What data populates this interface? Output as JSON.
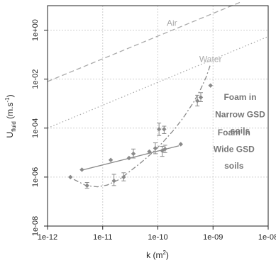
{
  "chart_data": {
    "type": "scatter",
    "x_scale": "log",
    "y_scale": "log",
    "xlim": [
      1e-12,
      1e-08
    ],
    "ylim": [
      1e-08,
      10.0
    ],
    "x_ticks": [
      1e-12,
      1e-11,
      1e-10,
      1e-09,
      1e-08
    ],
    "x_tick_labels": [
      "1e-12",
      "1e-11",
      "1e-10",
      "1e-09",
      "1e-08"
    ],
    "y_ticks": [
      1e-08,
      1e-06,
      0.0001,
      0.01,
      1.0
    ],
    "y_tick_labels": [
      "1e-08",
      "1e-06",
      "1e-04",
      "1e-02",
      "1e+00"
    ],
    "xlabel_main": "k (m",
    "xlabel_sup": "2",
    "xlabel_end": ")",
    "ylabel_main": "U",
    "ylabel_sub": "fluid",
    "ylabel_end": " (m.s",
    "ylabel_sup": "-1",
    "ylabel_close": ")",
    "grid": true,
    "colors": {
      "points": "#8a8a8a",
      "lines": "#8a8a8a",
      "reference": "#aaaaaa",
      "frame": "#222222",
      "grid": "#d0d0d0"
    },
    "annotations": [
      {
        "text": "Air",
        "x": 1.8e-10,
        "y": 1.5,
        "bold": false
      },
      {
        "text": "Water",
        "x": 9e-10,
        "y": 0.05,
        "bold": false
      },
      {
        "text": "Foam in",
        "x": 3.1e-09,
        "y": 0.0014,
        "bold": true
      },
      {
        "text": "Narrow GSD",
        "x": 3.1e-09,
        "y": 0.00028,
        "bold": true
      },
      {
        "text": "soils",
        "x": 3.1e-09,
        "y": 6e-05,
        "bold": true
      },
      {
        "text": "Foam in",
        "x": 2.4e-09,
        "y": 5e-05,
        "bold": true
      },
      {
        "text": "Wide GSD",
        "x": 2.4e-09,
        "y": 1.05e-05,
        "bold": true
      },
      {
        "text": "soils",
        "x": 2.4e-09,
        "y": 2.2e-06,
        "bold": true
      }
    ],
    "reference_lines": [
      {
        "name": "Air",
        "style": "dashed",
        "x": [
          1e-12,
          3.4e-09
        ],
        "y": [
          0.008,
          15
        ]
      },
      {
        "name": "Water",
        "style": "dotted",
        "x": [
          1e-12,
          1e-08
        ],
        "y": [
          0.0001,
          0.55
        ]
      }
    ],
    "series": [
      {
        "marker": "diamond",
        "points": [
          {
            "x": 2.6e-12,
            "y": 1e-06
          },
          {
            "x": 4.2e-12,
            "y": 2e-06
          },
          {
            "x": 1.4e-11,
            "y": 5e-06
          },
          {
            "x": 3e-11,
            "y": 6e-06
          },
          {
            "x": 7e-11,
            "y": 1.1e-05
          },
          {
            "x": 2.6e-10,
            "y": 2.2e-05
          },
          {
            "x": 9e-10,
            "y": 0.0055
          }
        ]
      },
      {
        "marker": "diamond-errorbar",
        "points": [
          {
            "x": 5.2e-12,
            "y": 4.5e-07,
            "lo": 3.5e-07,
            "hi": 6e-07
          },
          {
            "x": 1.6e-11,
            "y": 7e-07,
            "lo": 4.5e-07,
            "hi": 1.3e-06
          },
          {
            "x": 2.4e-11,
            "y": 1e-06,
            "lo": 7e-07,
            "hi": 1.5e-06
          },
          {
            "x": 3.6e-11,
            "y": 9e-06,
            "lo": 6e-06,
            "hi": 1.4e-05
          },
          {
            "x": 9e-11,
            "y": 1.5e-05,
            "lo": 9e-06,
            "hi": 2.5e-05
          },
          {
            "x": 1.05e-10,
            "y": 9e-05,
            "lo": 5e-05,
            "hi": 0.00016
          },
          {
            "x": 1.3e-10,
            "y": 9e-05,
            "lo": 6e-05,
            "hi": 0.00012
          },
          {
            "x": 1.2e-10,
            "y": 1.2e-05,
            "lo": 7e-06,
            "hi": 1.8e-05
          },
          {
            "x": 1.35e-10,
            "y": 1.4e-05,
            "lo": 1e-05,
            "hi": 2e-05
          },
          {
            "x": 5.2e-10,
            "y": 0.0013,
            "lo": 0.0008,
            "hi": 0.0022
          },
          {
            "x": 6e-10,
            "y": 0.0018,
            "lo": 0.0012,
            "hi": 0.0028
          }
        ]
      }
    ],
    "fit_lines": [
      {
        "style": "solid",
        "x": [
          4.5e-12,
          2.4e-10
        ],
        "y": [
          2e-06,
          1.9e-05
        ]
      },
      {
        "style": "dashdot",
        "x": [
          3e-12,
          5e-12,
          8e-12,
          1.2e-11,
          2e-11,
          3e-11,
          5e-11,
          8e-11,
          1.2e-10,
          2e-10,
          3e-10,
          4.5e-10,
          6e-10,
          7.5e-10,
          9e-10
        ],
        "y": [
          8e-07,
          4.5e-07,
          4e-07,
          4.7e-07,
          8e-07,
          1.6e-06,
          4e-06,
          1e-05,
          2.5e-05,
          9e-05,
          0.0003,
          0.0012,
          0.004,
          0.012,
          0.04
        ]
      }
    ]
  }
}
